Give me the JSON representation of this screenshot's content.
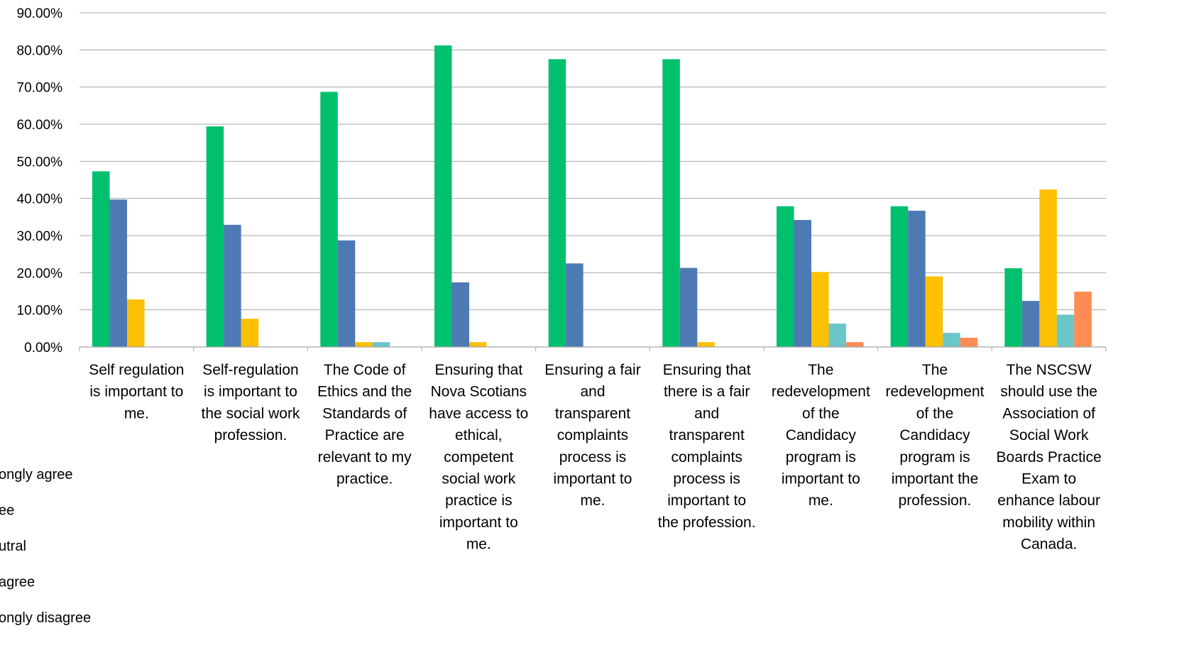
{
  "chart_data": {
    "type": "bar",
    "title": "",
    "xlabel": "",
    "ylabel": "",
    "ylim": [
      0,
      90
    ],
    "y_ticks": [
      "0.00%",
      "10.00%",
      "20.00%",
      "30.00%",
      "40.00%",
      "50.00%",
      "60.00%",
      "70.00%",
      "80.00%",
      "90.00%"
    ],
    "grid": true,
    "legend_position": "bottom-left",
    "categories": [
      "Self regulation is important to me.",
      "Self-regulation is important to the social work profession.",
      "The Code of Ethics and the Standards of Practice are relevant to my practice.",
      "Ensuring that Nova Scotians have access to ethical, competent social work practice is important to me.",
      "Ensuring a fair and transparent complaints process is important to me.",
      "Ensuring that there is a fair and transparent complaints process is important to the profession.",
      "The redevelopment of the Candidacy program is important to me.",
      "The redevelopment of the Candidacy program is important the profession.",
      "The NSCSW should use the Association of Social Work Boards Practice Exam to enhance labour mobility within Canada."
    ],
    "category_lines": [
      [
        "Self regulation",
        "is important to",
        "me."
      ],
      [
        "Self-regulation",
        "is important to",
        "the social work",
        "profession."
      ],
      [
        "The Code of",
        "Ethics and the",
        "Standards of",
        "Practice are",
        "relevant to my",
        "practice."
      ],
      [
        "Ensuring that",
        "Nova Scotians",
        "have access to",
        "ethical,",
        "competent",
        "social work",
        "practice is",
        "important to",
        "me."
      ],
      [
        "Ensuring a fair",
        "and",
        "transparent",
        "complaints",
        "process is",
        "important to",
        "me."
      ],
      [
        "Ensuring that",
        "there is a fair",
        "and",
        "transparent",
        "complaints",
        "process is",
        "important to",
        "the profession."
      ],
      [
        "The",
        "redevelopment",
        "of the",
        "Candidacy",
        "program is",
        "important to",
        "me."
      ],
      [
        "The",
        "redevelopment",
        "of the",
        "Candidacy",
        "program is",
        "important the",
        "profession."
      ],
      [
        "The NSCSW",
        "should use the",
        "Association of",
        "Social Work",
        "Boards Practice",
        "Exam to",
        "enhance labour",
        "mobility within",
        "Canada."
      ]
    ],
    "series": [
      {
        "name": "Strongly agree",
        "color": "#00C06E",
        "values": [
          47.3,
          59.4,
          68.7,
          81.2,
          77.5,
          77.5,
          37.9,
          37.9,
          21.2
        ]
      },
      {
        "name": "Agree",
        "color": "#4E7AB4",
        "values": [
          39.7,
          32.9,
          28.7,
          17.4,
          22.5,
          21.3,
          34.2,
          36.7,
          12.4
        ]
      },
      {
        "name": "Neutral",
        "color": "#FDC002",
        "values": [
          12.8,
          7.6,
          1.3,
          1.3,
          0,
          1.3,
          20.2,
          19.0,
          42.4
        ]
      },
      {
        "name": "Disagree",
        "color": "#6BC6C9",
        "values": [
          0,
          0,
          1.3,
          0,
          0,
          0,
          6.3,
          3.8,
          8.7
        ]
      },
      {
        "name": "Strongly disagree",
        "color": "#FF8C53",
        "values": [
          0,
          0,
          0,
          0,
          0,
          0,
          1.3,
          2.5,
          14.9
        ]
      }
    ]
  },
  "legend_items": [
    {
      "label": "ongly agree"
    },
    {
      "label": "ee"
    },
    {
      "label": "utral"
    },
    {
      "label": "agree"
    },
    {
      "label": "ongly disagree"
    }
  ]
}
